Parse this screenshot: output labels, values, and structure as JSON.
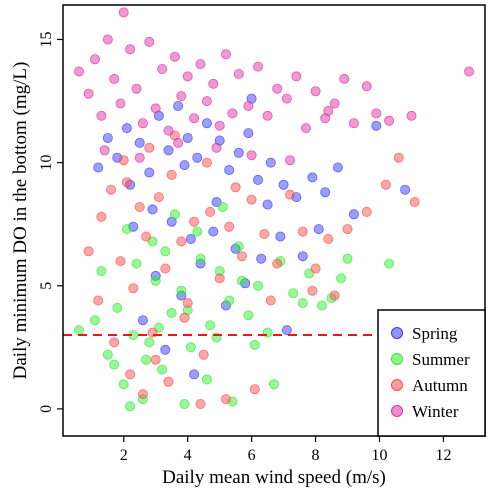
{
  "chart_data": {
    "type": "scatter",
    "title": "",
    "xlabel": "Daily mean wind speed (m/s)",
    "ylabel": "Daily minimum DO in the bottom (mg/L)",
    "xlim": [
      0.1,
      13.3
    ],
    "ylim": [
      -1.1,
      16.4
    ],
    "x_ticks": [
      2,
      4,
      6,
      8,
      10,
      12
    ],
    "y_ticks": [
      0,
      5,
      10,
      15
    ],
    "grid": false,
    "legend_position": "bottom-right",
    "reference_line": {
      "y": 3,
      "style": "dashed",
      "color": "#e31a1c"
    },
    "series": [
      {
        "name": "Spring",
        "color": "#3b3bff",
        "points": [
          [
            1.2,
            9.8
          ],
          [
            1.8,
            10.2
          ],
          [
            2.1,
            11.4
          ],
          [
            2.5,
            10.8
          ],
          [
            2.8,
            9.6
          ],
          [
            3.1,
            11.9
          ],
          [
            3.4,
            10.5
          ],
          [
            3.7,
            12.3
          ],
          [
            4.0,
            11.0
          ],
          [
            4.3,
            10.2
          ],
          [
            4.6,
            11.6
          ],
          [
            5.0,
            10.9
          ],
          [
            5.3,
            9.7
          ],
          [
            5.6,
            10.4
          ],
          [
            5.9,
            11.2
          ],
          [
            6.2,
            9.3
          ],
          [
            6.6,
            10.0
          ],
          [
            7.0,
            9.1
          ],
          [
            7.4,
            8.6
          ],
          [
            7.9,
            9.4
          ],
          [
            8.3,
            8.8
          ],
          [
            8.7,
            9.8
          ],
          [
            9.2,
            7.9
          ],
          [
            9.9,
            11.5
          ],
          [
            10.8,
            8.9
          ],
          [
            2.3,
            7.4
          ],
          [
            2.9,
            8.1
          ],
          [
            3.5,
            7.6
          ],
          [
            4.1,
            6.9
          ],
          [
            4.8,
            7.2
          ],
          [
            5.5,
            6.5
          ],
          [
            6.3,
            6.1
          ],
          [
            6.9,
            7.0
          ],
          [
            7.6,
            6.2
          ],
          [
            3.0,
            5.4
          ],
          [
            3.8,
            4.6
          ],
          [
            4.4,
            5.9
          ],
          [
            5.2,
            4.2
          ],
          [
            2.6,
            3.6
          ],
          [
            3.3,
            2.4
          ],
          [
            4.2,
            1.4
          ],
          [
            5.8,
            5.1
          ],
          [
            7.1,
            3.2
          ],
          [
            6.0,
            12.6
          ],
          [
            1.5,
            11.0
          ],
          [
            2.2,
            9.1
          ],
          [
            3.9,
            9.9
          ],
          [
            4.9,
            8.4
          ],
          [
            6.5,
            8.3
          ],
          [
            8.1,
            7.3
          ]
        ]
      },
      {
        "name": "Summer",
        "color": "#33ee33",
        "points": [
          [
            0.6,
            3.2
          ],
          [
            1.1,
            3.6
          ],
          [
            1.5,
            2.2
          ],
          [
            1.8,
            4.1
          ],
          [
            2.0,
            1.0
          ],
          [
            2.3,
            3.0
          ],
          [
            2.6,
            0.4
          ],
          [
            2.8,
            2.7
          ],
          [
            3.0,
            5.2
          ],
          [
            3.2,
            1.6
          ],
          [
            3.5,
            3.9
          ],
          [
            3.8,
            4.8
          ],
          [
            4.1,
            2.5
          ],
          [
            4.4,
            6.1
          ],
          [
            4.7,
            3.4
          ],
          [
            5.0,
            5.6
          ],
          [
            5.3,
            4.4
          ],
          [
            5.6,
            6.6
          ],
          [
            5.9,
            3.8
          ],
          [
            6.2,
            5.0
          ],
          [
            6.5,
            3.1
          ],
          [
            6.9,
            6.0
          ],
          [
            7.3,
            4.7
          ],
          [
            7.8,
            5.5
          ],
          [
            8.2,
            4.2
          ],
          [
            8.8,
            5.3
          ],
          [
            9.0,
            6.1
          ],
          [
            10.3,
            5.9
          ],
          [
            2.1,
            7.3
          ],
          [
            2.9,
            6.8
          ],
          [
            3.6,
            7.9
          ],
          [
            4.3,
            7.2
          ],
          [
            5.1,
            8.2
          ],
          [
            1.3,
            5.6
          ],
          [
            2.4,
            5.9
          ],
          [
            3.3,
            6.4
          ],
          [
            4.6,
            1.2
          ],
          [
            3.9,
            0.2
          ],
          [
            2.2,
            0.1
          ],
          [
            5.4,
            0.3
          ],
          [
            6.1,
            2.6
          ],
          [
            4.0,
            4.0
          ],
          [
            3.1,
            3.3
          ],
          [
            1.7,
            1.8
          ],
          [
            2.7,
            2.0
          ],
          [
            4.9,
            2.9
          ],
          [
            6.7,
            1.0
          ],
          [
            8.5,
            4.5
          ],
          [
            7.6,
            4.3
          ],
          [
            5.7,
            5.2
          ]
        ]
      },
      {
        "name": "Autumn",
        "color": "#ff4d4d",
        "points": [
          [
            0.9,
            6.4
          ],
          [
            1.3,
            7.8
          ],
          [
            1.6,
            8.9
          ],
          [
            1.9,
            6.0
          ],
          [
            2.1,
            9.2
          ],
          [
            2.3,
            4.9
          ],
          [
            2.5,
            8.2
          ],
          [
            2.7,
            7.0
          ],
          [
            2.9,
            3.1
          ],
          [
            3.1,
            8.6
          ],
          [
            3.3,
            5.7
          ],
          [
            3.5,
            9.5
          ],
          [
            3.8,
            6.8
          ],
          [
            4.0,
            4.3
          ],
          [
            4.2,
            7.6
          ],
          [
            4.5,
            2.2
          ],
          [
            4.7,
            8.0
          ],
          [
            5.0,
            5.3
          ],
          [
            5.3,
            7.4
          ],
          [
            5.7,
            6.2
          ],
          [
            6.0,
            8.5
          ],
          [
            6.4,
            7.1
          ],
          [
            6.8,
            5.9
          ],
          [
            7.2,
            8.7
          ],
          [
            7.6,
            7.2
          ],
          [
            8.0,
            5.7
          ],
          [
            8.4,
            6.9
          ],
          [
            9.0,
            7.3
          ],
          [
            9.6,
            8.0
          ],
          [
            10.2,
            9.1
          ],
          [
            10.6,
            10.2
          ],
          [
            11.1,
            8.4
          ],
          [
            1.2,
            4.4
          ],
          [
            1.7,
            2.7
          ],
          [
            2.2,
            1.4
          ],
          [
            2.6,
            0.6
          ],
          [
            3.0,
            2.0
          ],
          [
            3.4,
            1.1
          ],
          [
            3.9,
            3.7
          ],
          [
            4.4,
            0.2
          ],
          [
            5.2,
            0.4
          ],
          [
            6.1,
            0.8
          ],
          [
            2.0,
            10.1
          ],
          [
            2.8,
            10.6
          ],
          [
            3.6,
            11.1
          ],
          [
            4.6,
            10.0
          ],
          [
            5.5,
            9.0
          ],
          [
            7.9,
            4.8
          ],
          [
            6.6,
            4.4
          ],
          [
            8.6,
            4.6
          ]
        ]
      },
      {
        "name": "Winter",
        "color": "#dd33aa",
        "points": [
          [
            0.6,
            13.7
          ],
          [
            0.9,
            12.8
          ],
          [
            1.1,
            14.2
          ],
          [
            1.3,
            11.9
          ],
          [
            1.5,
            15.0
          ],
          [
            1.7,
            13.4
          ],
          [
            1.9,
            12.4
          ],
          [
            2.0,
            16.1
          ],
          [
            2.2,
            14.6
          ],
          [
            2.4,
            13.0
          ],
          [
            2.6,
            11.6
          ],
          [
            2.8,
            14.9
          ],
          [
            3.0,
            12.2
          ],
          [
            3.2,
            13.8
          ],
          [
            3.4,
            11.3
          ],
          [
            3.6,
            14.3
          ],
          [
            3.8,
            12.7
          ],
          [
            4.0,
            13.5
          ],
          [
            4.2,
            11.8
          ],
          [
            4.4,
            14.0
          ],
          [
            4.6,
            12.5
          ],
          [
            4.8,
            13.2
          ],
          [
            5.0,
            11.5
          ],
          [
            5.2,
            14.4
          ],
          [
            5.4,
            12.0
          ],
          [
            5.6,
            13.6
          ],
          [
            5.9,
            12.3
          ],
          [
            6.2,
            13.9
          ],
          [
            6.5,
            11.9
          ],
          [
            6.8,
            13.0
          ],
          [
            7.1,
            12.6
          ],
          [
            7.4,
            13.5
          ],
          [
            7.7,
            11.4
          ],
          [
            8.0,
            12.9
          ],
          [
            8.3,
            11.8
          ],
          [
            8.6,
            12.4
          ],
          [
            8.9,
            13.4
          ],
          [
            9.2,
            11.6
          ],
          [
            9.6,
            13.1
          ],
          [
            9.9,
            12.0
          ],
          [
            10.3,
            11.7
          ],
          [
            11.0,
            11.9
          ],
          [
            12.8,
            13.7
          ],
          [
            1.4,
            10.5
          ],
          [
            2.5,
            10.2
          ],
          [
            3.7,
            10.8
          ],
          [
            4.9,
            10.6
          ],
          [
            6.0,
            10.3
          ],
          [
            7.2,
            10.1
          ],
          [
            8.4,
            12.1
          ]
        ]
      }
    ]
  }
}
